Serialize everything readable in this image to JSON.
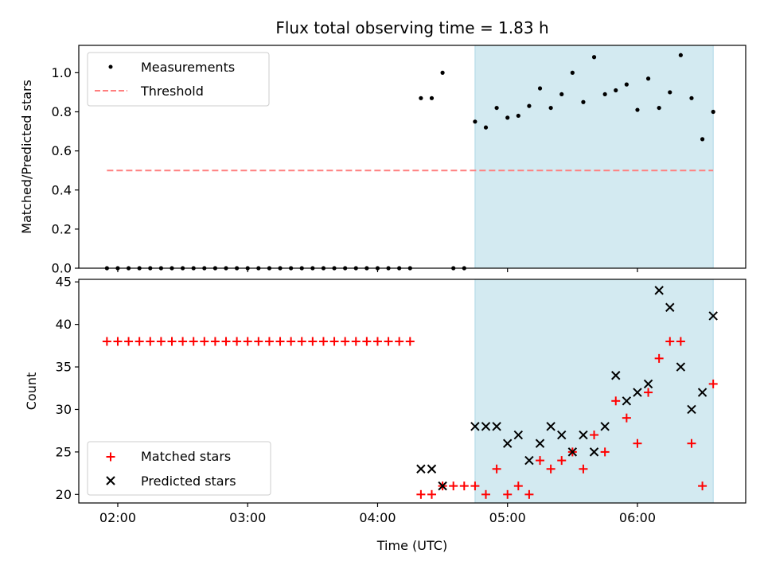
{
  "chart_data": [
    {
      "type": "scatter",
      "title": "Flux total observing time = 1.83 h",
      "ylabel": "Matched/Predicted stars",
      "xlabel": "",
      "xlim": [
        "01:42",
        "06:50"
      ],
      "ylim": [
        0,
        1.14
      ],
      "yticks": [
        "0.0",
        "0.2",
        "0.4",
        "0.6",
        "0.8",
        "1.0"
      ],
      "shaded_region": {
        "x_start": "04:45",
        "x_end": "06:35",
        "color": "#d3eaf1"
      },
      "legend_position": "upper-left",
      "series": [
        {
          "name": "Measurements",
          "marker": "dot",
          "color": "#000000",
          "points": [
            [
              "01:55",
              0
            ],
            [
              "02:00",
              0
            ],
            [
              "02:05",
              0
            ],
            [
              "02:10",
              0
            ],
            [
              "02:15",
              0
            ],
            [
              "02:20",
              0
            ],
            [
              "02:25",
              0
            ],
            [
              "02:30",
              0
            ],
            [
              "02:35",
              0
            ],
            [
              "02:40",
              0
            ],
            [
              "02:45",
              0
            ],
            [
              "02:50",
              0
            ],
            [
              "02:55",
              0
            ],
            [
              "03:00",
              0
            ],
            [
              "03:05",
              0
            ],
            [
              "03:10",
              0
            ],
            [
              "03:15",
              0
            ],
            [
              "03:20",
              0
            ],
            [
              "03:25",
              0
            ],
            [
              "03:30",
              0
            ],
            [
              "03:35",
              0
            ],
            [
              "03:40",
              0
            ],
            [
              "03:45",
              0
            ],
            [
              "03:50",
              0
            ],
            [
              "03:55",
              0
            ],
            [
              "04:00",
              0
            ],
            [
              "04:05",
              0
            ],
            [
              "04:10",
              0
            ],
            [
              "04:15",
              0
            ],
            [
              "04:20",
              0.87
            ],
            [
              "04:25",
              0.87
            ],
            [
              "04:30",
              1.0
            ],
            [
              "04:35",
              0
            ],
            [
              "04:40",
              0
            ],
            [
              "04:45",
              0.75
            ],
            [
              "04:50",
              0.72
            ],
            [
              "04:55",
              0.82
            ],
            [
              "05:00",
              0.77
            ],
            [
              "05:05",
              0.78
            ],
            [
              "05:10",
              0.83
            ],
            [
              "05:15",
              0.92
            ],
            [
              "05:20",
              0.82
            ],
            [
              "05:25",
              0.89
            ],
            [
              "05:30",
              1.0
            ],
            [
              "05:35",
              0.85
            ],
            [
              "05:40",
              1.08
            ],
            [
              "05:45",
              0.89
            ],
            [
              "05:50",
              0.91
            ],
            [
              "05:55",
              0.94
            ],
            [
              "06:00",
              0.81
            ],
            [
              "06:05",
              0.97
            ],
            [
              "06:10",
              0.82
            ],
            [
              "06:15",
              0.9
            ],
            [
              "06:20",
              1.09
            ],
            [
              "06:25",
              0.87
            ],
            [
              "06:30",
              0.66
            ],
            [
              "06:35",
              0.8
            ]
          ]
        },
        {
          "name": "Threshold",
          "marker": "dashed-line",
          "color": "#ff7f7f",
          "points": [
            [
              "01:55",
              0.5
            ],
            [
              "06:35",
              0.5
            ]
          ]
        }
      ]
    },
    {
      "type": "scatter",
      "title": "",
      "ylabel": "Count",
      "xlabel": "Time (UTC)",
      "xlim": [
        "01:42",
        "06:50"
      ],
      "ylim": [
        19,
        45.3
      ],
      "yticks": [
        "20",
        "25",
        "30",
        "35",
        "40",
        "45"
      ],
      "xticks": [
        "02:00",
        "03:00",
        "04:00",
        "05:00",
        "06:00"
      ],
      "shaded_region": {
        "x_start": "04:45",
        "x_end": "06:35",
        "color": "#d3eaf1"
      },
      "legend_position": "lower-left",
      "series": [
        {
          "name": "Matched stars",
          "marker": "plus",
          "color": "#ff0000",
          "points": [
            [
              "01:55",
              38
            ],
            [
              "02:00",
              38
            ],
            [
              "02:05",
              38
            ],
            [
              "02:10",
              38
            ],
            [
              "02:15",
              38
            ],
            [
              "02:20",
              38
            ],
            [
              "02:25",
              38
            ],
            [
              "02:30",
              38
            ],
            [
              "02:35",
              38
            ],
            [
              "02:40",
              38
            ],
            [
              "02:45",
              38
            ],
            [
              "02:50",
              38
            ],
            [
              "02:55",
              38
            ],
            [
              "03:00",
              38
            ],
            [
              "03:05",
              38
            ],
            [
              "03:10",
              38
            ],
            [
              "03:15",
              38
            ],
            [
              "03:20",
              38
            ],
            [
              "03:25",
              38
            ],
            [
              "03:30",
              38
            ],
            [
              "03:35",
              38
            ],
            [
              "03:40",
              38
            ],
            [
              "03:45",
              38
            ],
            [
              "03:50",
              38
            ],
            [
              "03:55",
              38
            ],
            [
              "04:00",
              38
            ],
            [
              "04:05",
              38
            ],
            [
              "04:10",
              38
            ],
            [
              "04:15",
              38
            ],
            [
              "04:20",
              20
            ],
            [
              "04:25",
              20
            ],
            [
              "04:30",
              21
            ],
            [
              "04:35",
              21
            ],
            [
              "04:40",
              21
            ],
            [
              "04:45",
              21
            ],
            [
              "04:50",
              20
            ],
            [
              "04:55",
              23
            ],
            [
              "05:00",
              20
            ],
            [
              "05:05",
              21
            ],
            [
              "05:10",
              20
            ],
            [
              "05:15",
              24
            ],
            [
              "05:20",
              23
            ],
            [
              "05:25",
              24
            ],
            [
              "05:30",
              25
            ],
            [
              "05:35",
              23
            ],
            [
              "05:40",
              27
            ],
            [
              "05:45",
              25
            ],
            [
              "05:50",
              31
            ],
            [
              "05:55",
              29
            ],
            [
              "06:00",
              26
            ],
            [
              "06:05",
              32
            ],
            [
              "06:10",
              36
            ],
            [
              "06:15",
              38
            ],
            [
              "06:20",
              38
            ],
            [
              "06:25",
              26
            ],
            [
              "06:30",
              21
            ],
            [
              "06:35",
              33
            ]
          ]
        },
        {
          "name": "Predicted stars",
          "marker": "x",
          "color": "#000000",
          "points": [
            [
              "04:20",
              23
            ],
            [
              "04:25",
              23
            ],
            [
              "04:30",
              21
            ],
            [
              "04:45",
              28
            ],
            [
              "04:50",
              28
            ],
            [
              "04:55",
              28
            ],
            [
              "05:00",
              26
            ],
            [
              "05:05",
              27
            ],
            [
              "05:10",
              24
            ],
            [
              "05:15",
              26
            ],
            [
              "05:20",
              28
            ],
            [
              "05:25",
              27
            ],
            [
              "05:30",
              25
            ],
            [
              "05:35",
              27
            ],
            [
              "05:40",
              25
            ],
            [
              "05:45",
              28
            ],
            [
              "05:50",
              34
            ],
            [
              "05:55",
              31
            ],
            [
              "06:00",
              32
            ],
            [
              "06:05",
              33
            ],
            [
              "06:10",
              44
            ],
            [
              "06:15",
              42
            ],
            [
              "06:20",
              35
            ],
            [
              "06:25",
              30
            ],
            [
              "06:30",
              32
            ],
            [
              "06:35",
              41
            ]
          ]
        }
      ]
    }
  ]
}
